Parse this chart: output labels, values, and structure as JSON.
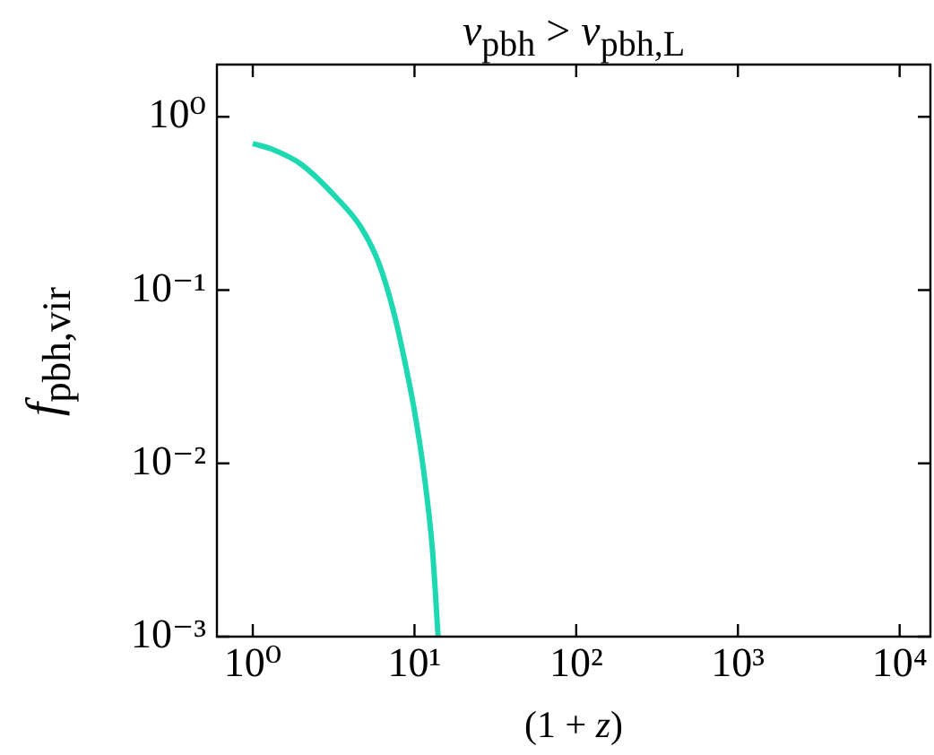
{
  "chart_data": {
    "type": "line",
    "title": "v$_{pbh}$ > v$_{pbh,L}$",
    "xlabel": "(1 + z)",
    "ylabel": "f$_{pbh,vir}$",
    "x": [
      1,
      1.31,
      2,
      3.3,
      4.67,
      6,
      7.4,
      8.8,
      10,
      11.4,
      12.9,
      14
    ],
    "series": [
      {
        "color": "#1dd8b0",
        "values": [
          0.7,
          0.65,
          0.53,
          0.34,
          0.23,
          0.144,
          0.076,
          0.037,
          0.02,
          0.009,
          0.0032,
          0.001
        ]
      }
    ],
    "log": "xy",
    "xlim": [
      0.63,
      15500
    ],
    "ylim": [
      0.001,
      2
    ],
    "xticks": [
      {
        "value": 1,
        "label": "10⁰"
      },
      {
        "value": 10,
        "label": "10¹"
      },
      {
        "value": 100,
        "label": "10²"
      },
      {
        "value": 1000,
        "label": "10³"
      },
      {
        "value": 10000,
        "label": "10⁴"
      }
    ],
    "yticks": [
      {
        "value": 0.001,
        "label": "10⁻³"
      },
      {
        "value": 0.01,
        "label": "10⁻²"
      },
      {
        "value": 0.1,
        "label": "10⁻¹"
      },
      {
        "value": 1,
        "label": "10⁰"
      }
    ],
    "grid": false,
    "legend": false,
    "marker": "none",
    "line_style": "solid"
  }
}
